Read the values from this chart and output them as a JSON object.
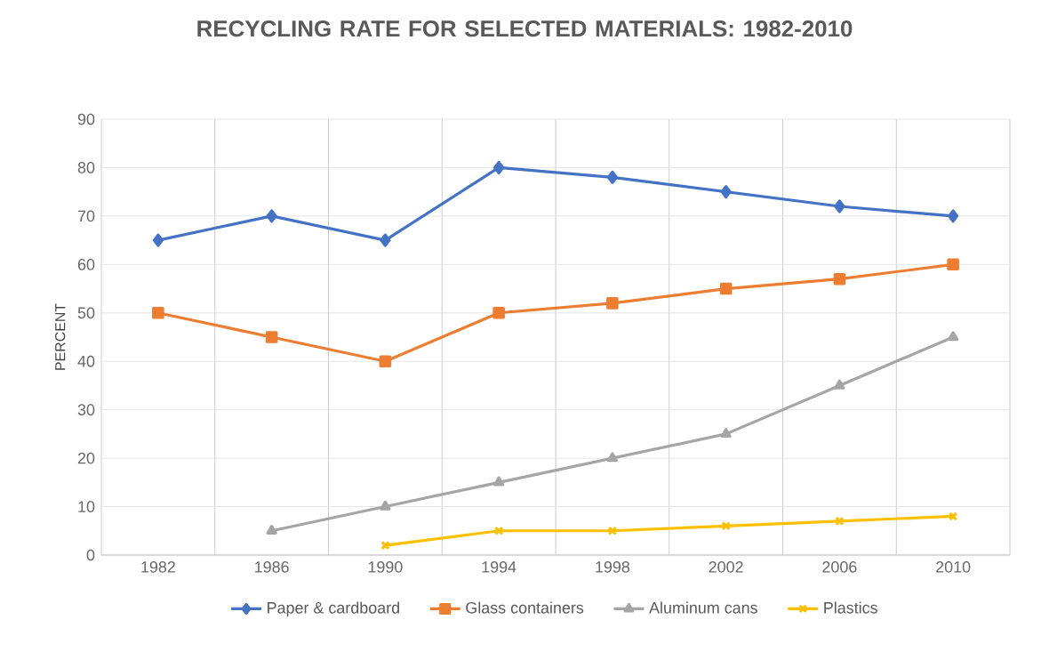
{
  "chart_data": {
    "type": "line",
    "title": "RECYCLING RATE FOR SELECTED MATERIALS: 1982-2010",
    "ylabel": "PERCENT",
    "categories": [
      "1982",
      "1986",
      "1990",
      "1994",
      "1998",
      "2002",
      "2006",
      "2010"
    ],
    "series": [
      {
        "name": "Paper & cardboard",
        "color": "#4472c4",
        "marker": "diamond",
        "values": [
          65,
          70,
          65,
          80,
          78,
          75,
          72,
          70
        ]
      },
      {
        "name": "Glass containers",
        "color": "#ed7d31",
        "marker": "square",
        "values": [
          50,
          45,
          40,
          50,
          52,
          55,
          57,
          60
        ]
      },
      {
        "name": "Aluminum cans",
        "color": "#a5a5a5",
        "marker": "triangle",
        "values": [
          null,
          5,
          10,
          15,
          20,
          25,
          35,
          45
        ]
      },
      {
        "name": "Plastics",
        "color": "#ffc000",
        "marker": "cross",
        "values": [
          null,
          null,
          2,
          5,
          5,
          6,
          7,
          8
        ]
      }
    ],
    "ylim": [
      0,
      90
    ],
    "yticks": [
      0,
      10,
      20,
      30,
      40,
      50,
      60,
      70,
      80,
      90
    ],
    "grid": true,
    "legend": "bottom",
    "line_style": "solid"
  }
}
